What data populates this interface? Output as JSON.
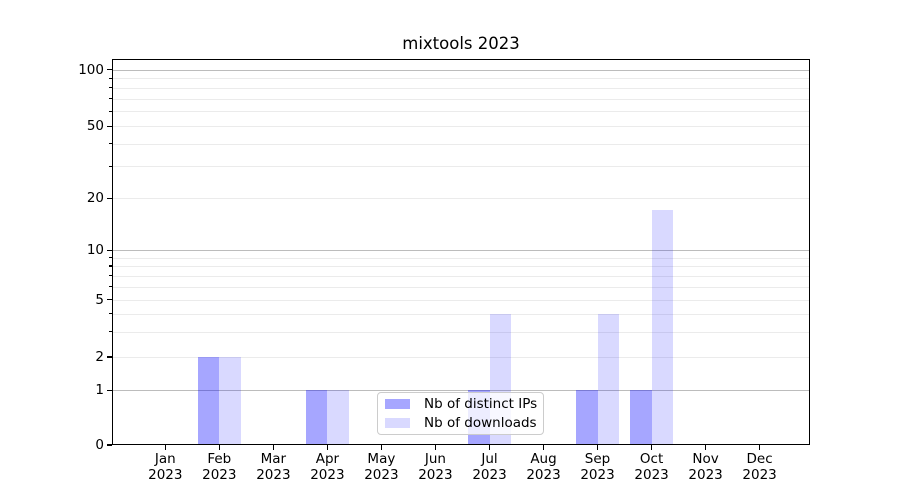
{
  "title": "mixtools 2023",
  "chart_data": {
    "type": "bar",
    "title": "mixtools 2023",
    "categories": [
      "Jan 2023",
      "Feb 2023",
      "Mar 2023",
      "Apr 2023",
      "May 2023",
      "Jun 2023",
      "Jul 2023",
      "Aug 2023",
      "Sep 2023",
      "Oct 2023",
      "Nov 2023",
      "Dec 2023"
    ],
    "series": [
      {
        "name": "Nb of distinct IPs",
        "color": "rgba(0,0,255,0.35)",
        "color_hex_on_white": "#a6a6ff",
        "values": [
          0,
          2,
          0,
          1,
          0,
          0,
          1,
          0,
          1,
          1,
          0,
          0
        ]
      },
      {
        "name": "Nb of downloads",
        "color": "rgba(0,0,255,0.15)",
        "color_hex_on_white": "#d9d9ff",
        "values": [
          0,
          2,
          0,
          1,
          0,
          0,
          4,
          0,
          4,
          17,
          0,
          0
        ]
      }
    ],
    "xlabel": "",
    "ylabel": "",
    "yscale": "log-like (compressed decades, 0 baseline)",
    "yticks_labeled": [
      0,
      1,
      2,
      5,
      10,
      20,
      50,
      100
    ],
    "yticks_minor": [
      3,
      4,
      6,
      7,
      8,
      9,
      30,
      40,
      60,
      70,
      80,
      90
    ],
    "grid_major_at": [
      1,
      10,
      100
    ],
    "grid_minor_at": [
      2,
      3,
      4,
      5,
      6,
      7,
      8,
      9,
      20,
      30,
      40,
      50,
      60,
      70,
      80,
      90
    ],
    "ylim": [
      0,
      112
    ],
    "legend_location": "lower center (inside plot)",
    "grid": "horizontal major+minor"
  },
  "colors": {
    "grid_major": "#bcbcbc",
    "grid_minor": "#ebebeb",
    "spine": "#000000",
    "text": "#000000",
    "legend_border": "#cccccc"
  }
}
